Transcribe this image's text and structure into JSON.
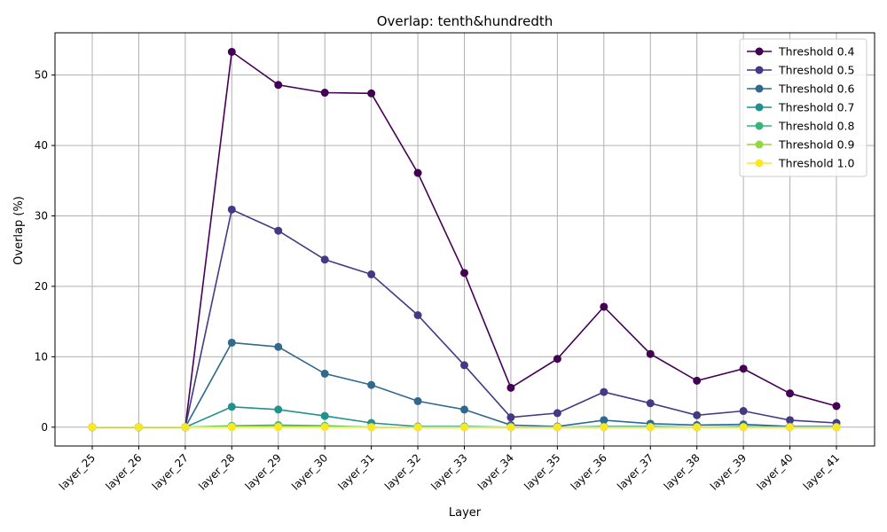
{
  "chart_data": {
    "type": "line",
    "title": "Overlap: tenth&hundredth",
    "xlabel": "Layer",
    "ylabel": "Overlap (%)",
    "ylim": [
      -2.67,
      56.0
    ],
    "yticks": [
      0,
      10,
      20,
      30,
      40,
      50
    ],
    "grid": true,
    "legend_position": "top-right",
    "categories": [
      "layer_25",
      "layer_26",
      "layer_27",
      "layer_28",
      "layer_29",
      "layer_30",
      "layer_31",
      "layer_32",
      "layer_33",
      "layer_34",
      "layer_35",
      "layer_36",
      "layer_37",
      "layer_38",
      "layer_39",
      "layer_40",
      "layer_41"
    ],
    "series": [
      {
        "name": "Threshold 0.4",
        "color": "#440154",
        "values": [
          0,
          0,
          0,
          53.3,
          48.6,
          47.5,
          47.4,
          36.1,
          21.9,
          5.6,
          9.7,
          17.1,
          10.4,
          6.6,
          8.3,
          4.8,
          3.0
        ]
      },
      {
        "name": "Threshold 0.5",
        "color": "#443983",
        "values": [
          0,
          0,
          0,
          30.9,
          27.9,
          23.8,
          21.7,
          15.9,
          8.8,
          1.4,
          2.0,
          5.0,
          3.4,
          1.7,
          2.3,
          1.0,
          0.6
        ]
      },
      {
        "name": "Threshold 0.6",
        "color": "#31688e",
        "values": [
          0,
          0,
          0,
          12.0,
          11.4,
          7.6,
          6.0,
          3.7,
          2.5,
          0.3,
          0.1,
          1.0,
          0.5,
          0.3,
          0.4,
          0.1,
          0.1
        ]
      },
      {
        "name": "Threshold 0.7",
        "color": "#21918c",
        "values": [
          0,
          0,
          0,
          2.9,
          2.5,
          1.6,
          0.6,
          0.1,
          0.1,
          0.0,
          0.0,
          0.1,
          0.1,
          0.0,
          0.1,
          0.0,
          0.0
        ]
      },
      {
        "name": "Threshold 0.8",
        "color": "#35b779",
        "values": [
          0,
          0,
          0,
          0.2,
          0.3,
          0.2,
          0.0,
          0.0,
          0.0,
          0.0,
          0.0,
          0.0,
          0.0,
          0.0,
          0.0,
          0.0,
          0.0
        ]
      },
      {
        "name": "Threshold 0.9",
        "color": "#90d743",
        "values": [
          0,
          0,
          0,
          0.1,
          0.1,
          0.1,
          0.0,
          0.0,
          0.0,
          0.0,
          0.0,
          0.0,
          0.0,
          0.0,
          0.0,
          0.0,
          0.0
        ]
      },
      {
        "name": "Threshold 1.0",
        "color": "#fde725",
        "values": [
          0,
          0,
          0,
          0.0,
          0.0,
          0.0,
          0.0,
          0.0,
          0.0,
          0.0,
          0.0,
          0.0,
          0.0,
          0.0,
          0.0,
          0.0,
          0.0
        ]
      }
    ]
  }
}
